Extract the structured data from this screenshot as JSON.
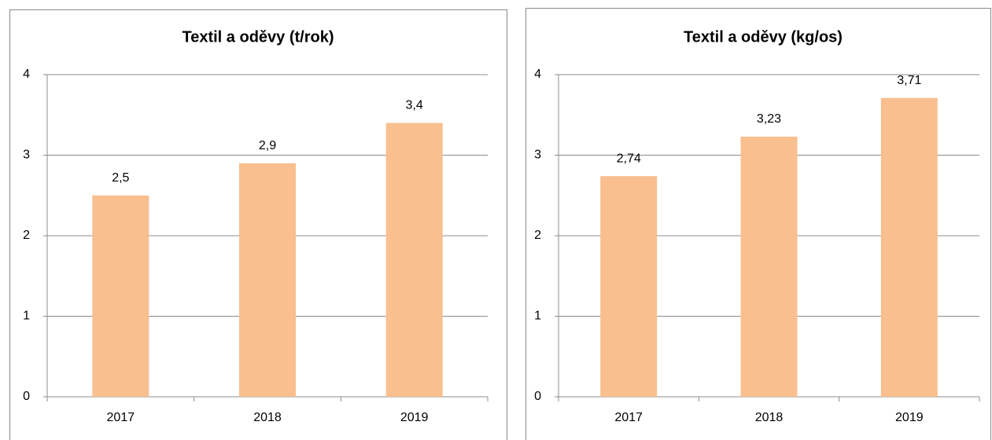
{
  "chart_data": [
    {
      "type": "bar",
      "title": "Textil a oděvy (t/rok)",
      "categories": [
        "2017",
        "2018",
        "2019"
      ],
      "values": [
        2.5,
        2.9,
        3.4
      ],
      "value_labels": [
        "2,5",
        "2,9",
        "3,4"
      ],
      "color": "#f9bf8f",
      "ylim": [
        0,
        4
      ],
      "yticks": [
        0,
        1,
        2,
        3,
        4
      ],
      "grid": true
    },
    {
      "type": "bar",
      "title": "Textil a oděvy (kg/os)",
      "categories": [
        "2017",
        "2018",
        "2019"
      ],
      "values": [
        2.74,
        3.23,
        3.71
      ],
      "value_labels": [
        "2,74",
        "3,23",
        "3,71"
      ],
      "color": "#f9bf8f",
      "ylim": [
        0,
        4
      ],
      "yticks": [
        0,
        1,
        2,
        3,
        4
      ],
      "grid": true
    }
  ]
}
